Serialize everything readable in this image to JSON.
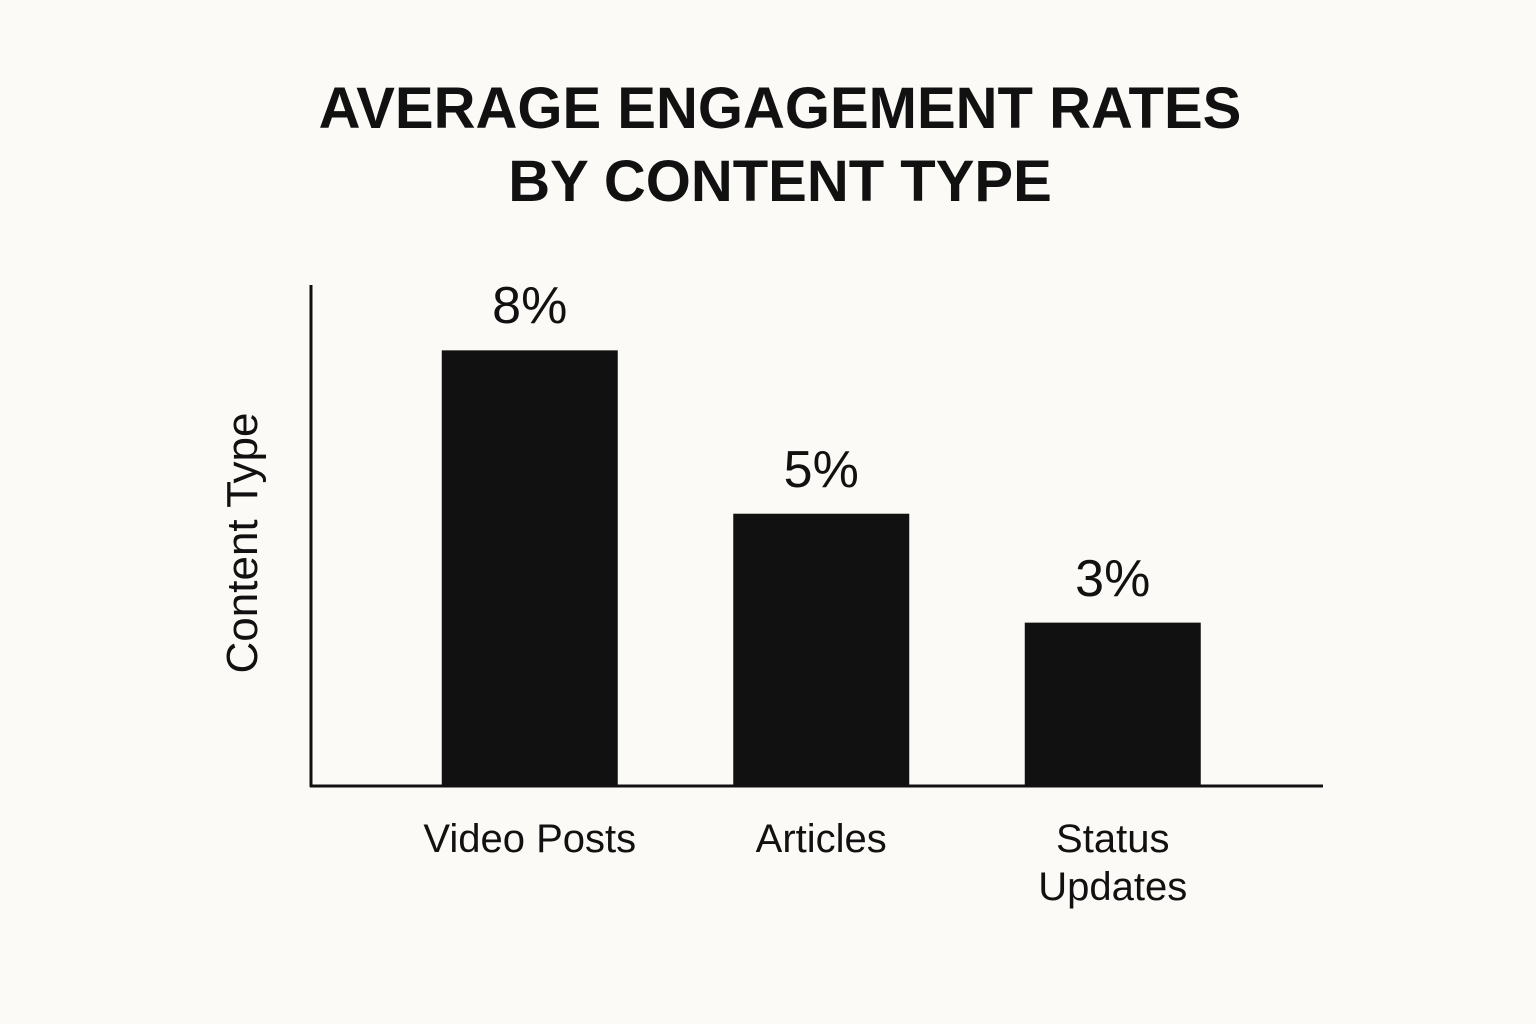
{
  "chart_data": {
    "type": "bar",
    "title": "AVERAGE ENGAGEMENT RATES BY CONTENT TYPE",
    "y_label": "Content Type",
    "categories": [
      "Video Posts",
      "Articles",
      "Status Updates"
    ],
    "values": [
      8,
      5,
      3
    ],
    "value_labels": [
      "8%",
      "5%",
      "3%"
    ],
    "color": "#111111",
    "ylim": [
      0,
      9.2
    ]
  }
}
